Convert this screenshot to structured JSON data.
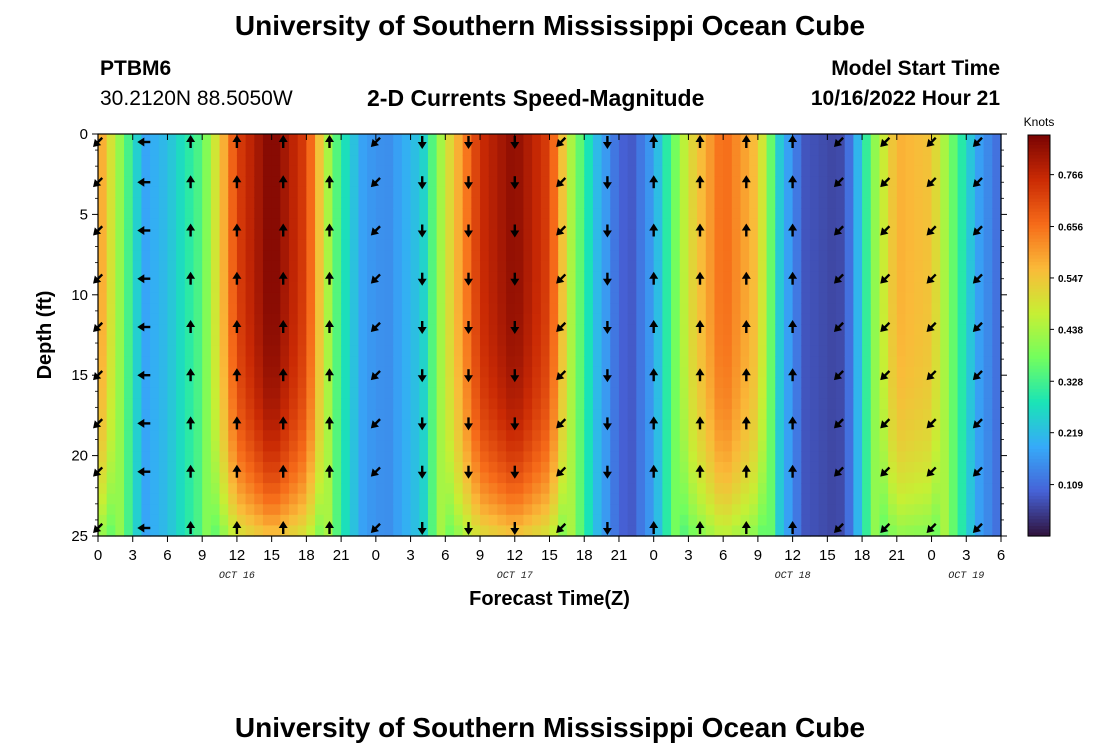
{
  "header": {
    "title": "University of Southern Mississippi Ocean Cube",
    "station": "PTBM6",
    "coords": "30.2120N  88.5050W",
    "subtitle": "2-D Currents Speed-Magnitude",
    "model_label": "Model Start Time",
    "model_time": "10/16/2022 Hour 21"
  },
  "footer": {
    "title": "University of Southern Mississippi Ocean Cube"
  },
  "chart_data": {
    "type": "heatmap",
    "title": "2-D Currents Speed-Magnitude",
    "xlabel": "Forecast Time(Z)",
    "ylabel": "Depth (ft)",
    "x_ticks": [
      "0",
      "3",
      "6",
      "9",
      "12",
      "15",
      "18",
      "21",
      "0",
      "3",
      "6",
      "9",
      "12",
      "15",
      "18",
      "21",
      "0",
      "3",
      "6",
      "9",
      "12",
      "15",
      "18",
      "21",
      "0",
      "3",
      "6"
    ],
    "x_range_hours": [
      0,
      78
    ],
    "y_ticks": [
      0,
      5,
      10,
      15,
      20,
      25
    ],
    "ylim": [
      0,
      25
    ],
    "date_labels": [
      {
        "text": "OCT 16",
        "hour": 12
      },
      {
        "text": "OCT 17",
        "hour": 36
      },
      {
        "text": "OCT 18",
        "hour": 60
      },
      {
        "text": "OCT 19",
        "hour": 75
      }
    ],
    "colorbar": {
      "title": "Knots",
      "ticks": [
        0.766,
        0.656,
        0.547,
        0.438,
        0.328,
        0.219,
        0.109
      ],
      "range": [
        0.0,
        0.85
      ],
      "colors": [
        "#30123b",
        "#4662d7",
        "#36aaf9",
        "#1ae4b6",
        "#72fe5e",
        "#c7ef34",
        "#faba39",
        "#f66b19",
        "#ca2a04",
        "#7a0403"
      ]
    },
    "speed_profile_surface": [
      {
        "hour": 0,
        "speed": 0.62
      },
      {
        "hour": 2,
        "speed": 0.4
      },
      {
        "hour": 4,
        "speed": 0.18
      },
      {
        "hour": 6,
        "speed": 0.22
      },
      {
        "hour": 9,
        "speed": 0.35
      },
      {
        "hour": 12,
        "speed": 0.72
      },
      {
        "hour": 15,
        "speed": 0.85
      },
      {
        "hour": 18,
        "speed": 0.72
      },
      {
        "hour": 20,
        "speed": 0.42
      },
      {
        "hour": 21,
        "speed": 0.3
      },
      {
        "hour": 23,
        "speed": 0.17
      },
      {
        "hour": 25,
        "speed": 0.15
      },
      {
        "hour": 28,
        "speed": 0.24
      },
      {
        "hour": 30,
        "speed": 0.48
      },
      {
        "hour": 33,
        "speed": 0.75
      },
      {
        "hour": 36,
        "speed": 0.83
      },
      {
        "hour": 39,
        "speed": 0.72
      },
      {
        "hour": 41,
        "speed": 0.42
      },
      {
        "hour": 43,
        "speed": 0.22
      },
      {
        "hour": 45,
        "speed": 0.1
      },
      {
        "hour": 46,
        "speed": 0.08
      },
      {
        "hour": 48,
        "speed": 0.18
      },
      {
        "hour": 51,
        "speed": 0.5
      },
      {
        "hour": 54,
        "speed": 0.67
      },
      {
        "hour": 57,
        "speed": 0.55
      },
      {
        "hour": 59,
        "speed": 0.22
      },
      {
        "hour": 61,
        "speed": 0.08
      },
      {
        "hour": 64,
        "speed": 0.06
      },
      {
        "hour": 65,
        "speed": 0.12
      },
      {
        "hour": 67,
        "speed": 0.4
      },
      {
        "hour": 69,
        "speed": 0.58
      },
      {
        "hour": 72,
        "speed": 0.55
      },
      {
        "hour": 74,
        "speed": 0.35
      },
      {
        "hour": 76,
        "speed": 0.18
      },
      {
        "hour": 78,
        "speed": 0.1
      }
    ],
    "arrow_rows_depth_ft": [
      0.5,
      3,
      6,
      9,
      12,
      15,
      18,
      21,
      24.5
    ],
    "arrow_columns": [
      {
        "hour": 0,
        "dir": "sw"
      },
      {
        "hour": 4,
        "dir": "w"
      },
      {
        "hour": 8,
        "dir": "n"
      },
      {
        "hour": 12,
        "dir": "n"
      },
      {
        "hour": 16,
        "dir": "n"
      },
      {
        "hour": 20,
        "dir": "n"
      },
      {
        "hour": 24,
        "dir": "sw"
      },
      {
        "hour": 28,
        "dir": "s"
      },
      {
        "hour": 32,
        "dir": "s"
      },
      {
        "hour": 36,
        "dir": "s"
      },
      {
        "hour": 40,
        "dir": "sw"
      },
      {
        "hour": 44,
        "dir": "s"
      },
      {
        "hour": 48,
        "dir": "n"
      },
      {
        "hour": 52,
        "dir": "n"
      },
      {
        "hour": 56,
        "dir": "n"
      },
      {
        "hour": 60,
        "dir": "n"
      },
      {
        "hour": 64,
        "dir": "sw"
      },
      {
        "hour": 68,
        "dir": "sw"
      },
      {
        "hour": 72,
        "dir": "sw"
      },
      {
        "hour": 76,
        "dir": "sw"
      }
    ]
  }
}
